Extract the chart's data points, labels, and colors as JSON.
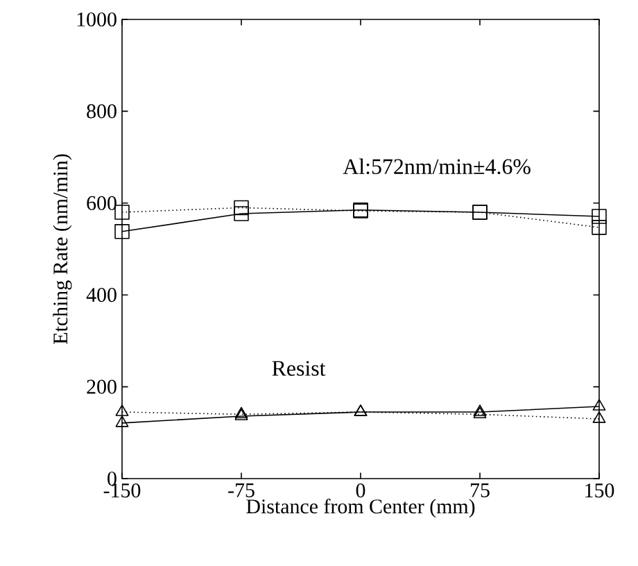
{
  "chart_data": {
    "type": "line",
    "xlabel": "Distance from Center (mm)",
    "ylabel": "Etching Rate (nm/min)",
    "x": [
      -150,
      -75,
      0,
      75,
      150
    ],
    "series": [
      {
        "color": "#000000",
        "marker": "square",
        "line_style": "solid",
        "values": [
          538,
          577,
          585,
          580,
          571
        ]
      },
      {
        "color": "#000000",
        "marker": "square",
        "line_style": "dotted",
        "values": [
          580,
          590,
          583,
          580,
          547
        ]
      },
      {
        "color": "#000000",
        "marker": "triangle",
        "line_style": "solid",
        "values": [
          121,
          136,
          145,
          145,
          157
        ]
      },
      {
        "color": "#000000",
        "marker": "triangle",
        "line_style": "dotted",
        "values": [
          145,
          140,
          145,
          140,
          130
        ]
      }
    ],
    "xlim": [
      -150,
      150
    ],
    "ylim": [
      0,
      1000
    ],
    "xticks": [
      -150,
      -75,
      0,
      75,
      150
    ],
    "yticks": [
      0,
      200,
      400,
      600,
      800,
      1000
    ],
    "grid": false,
    "annotations": [
      "Al:572nm/min±4.6%",
      "Resist"
    ]
  }
}
